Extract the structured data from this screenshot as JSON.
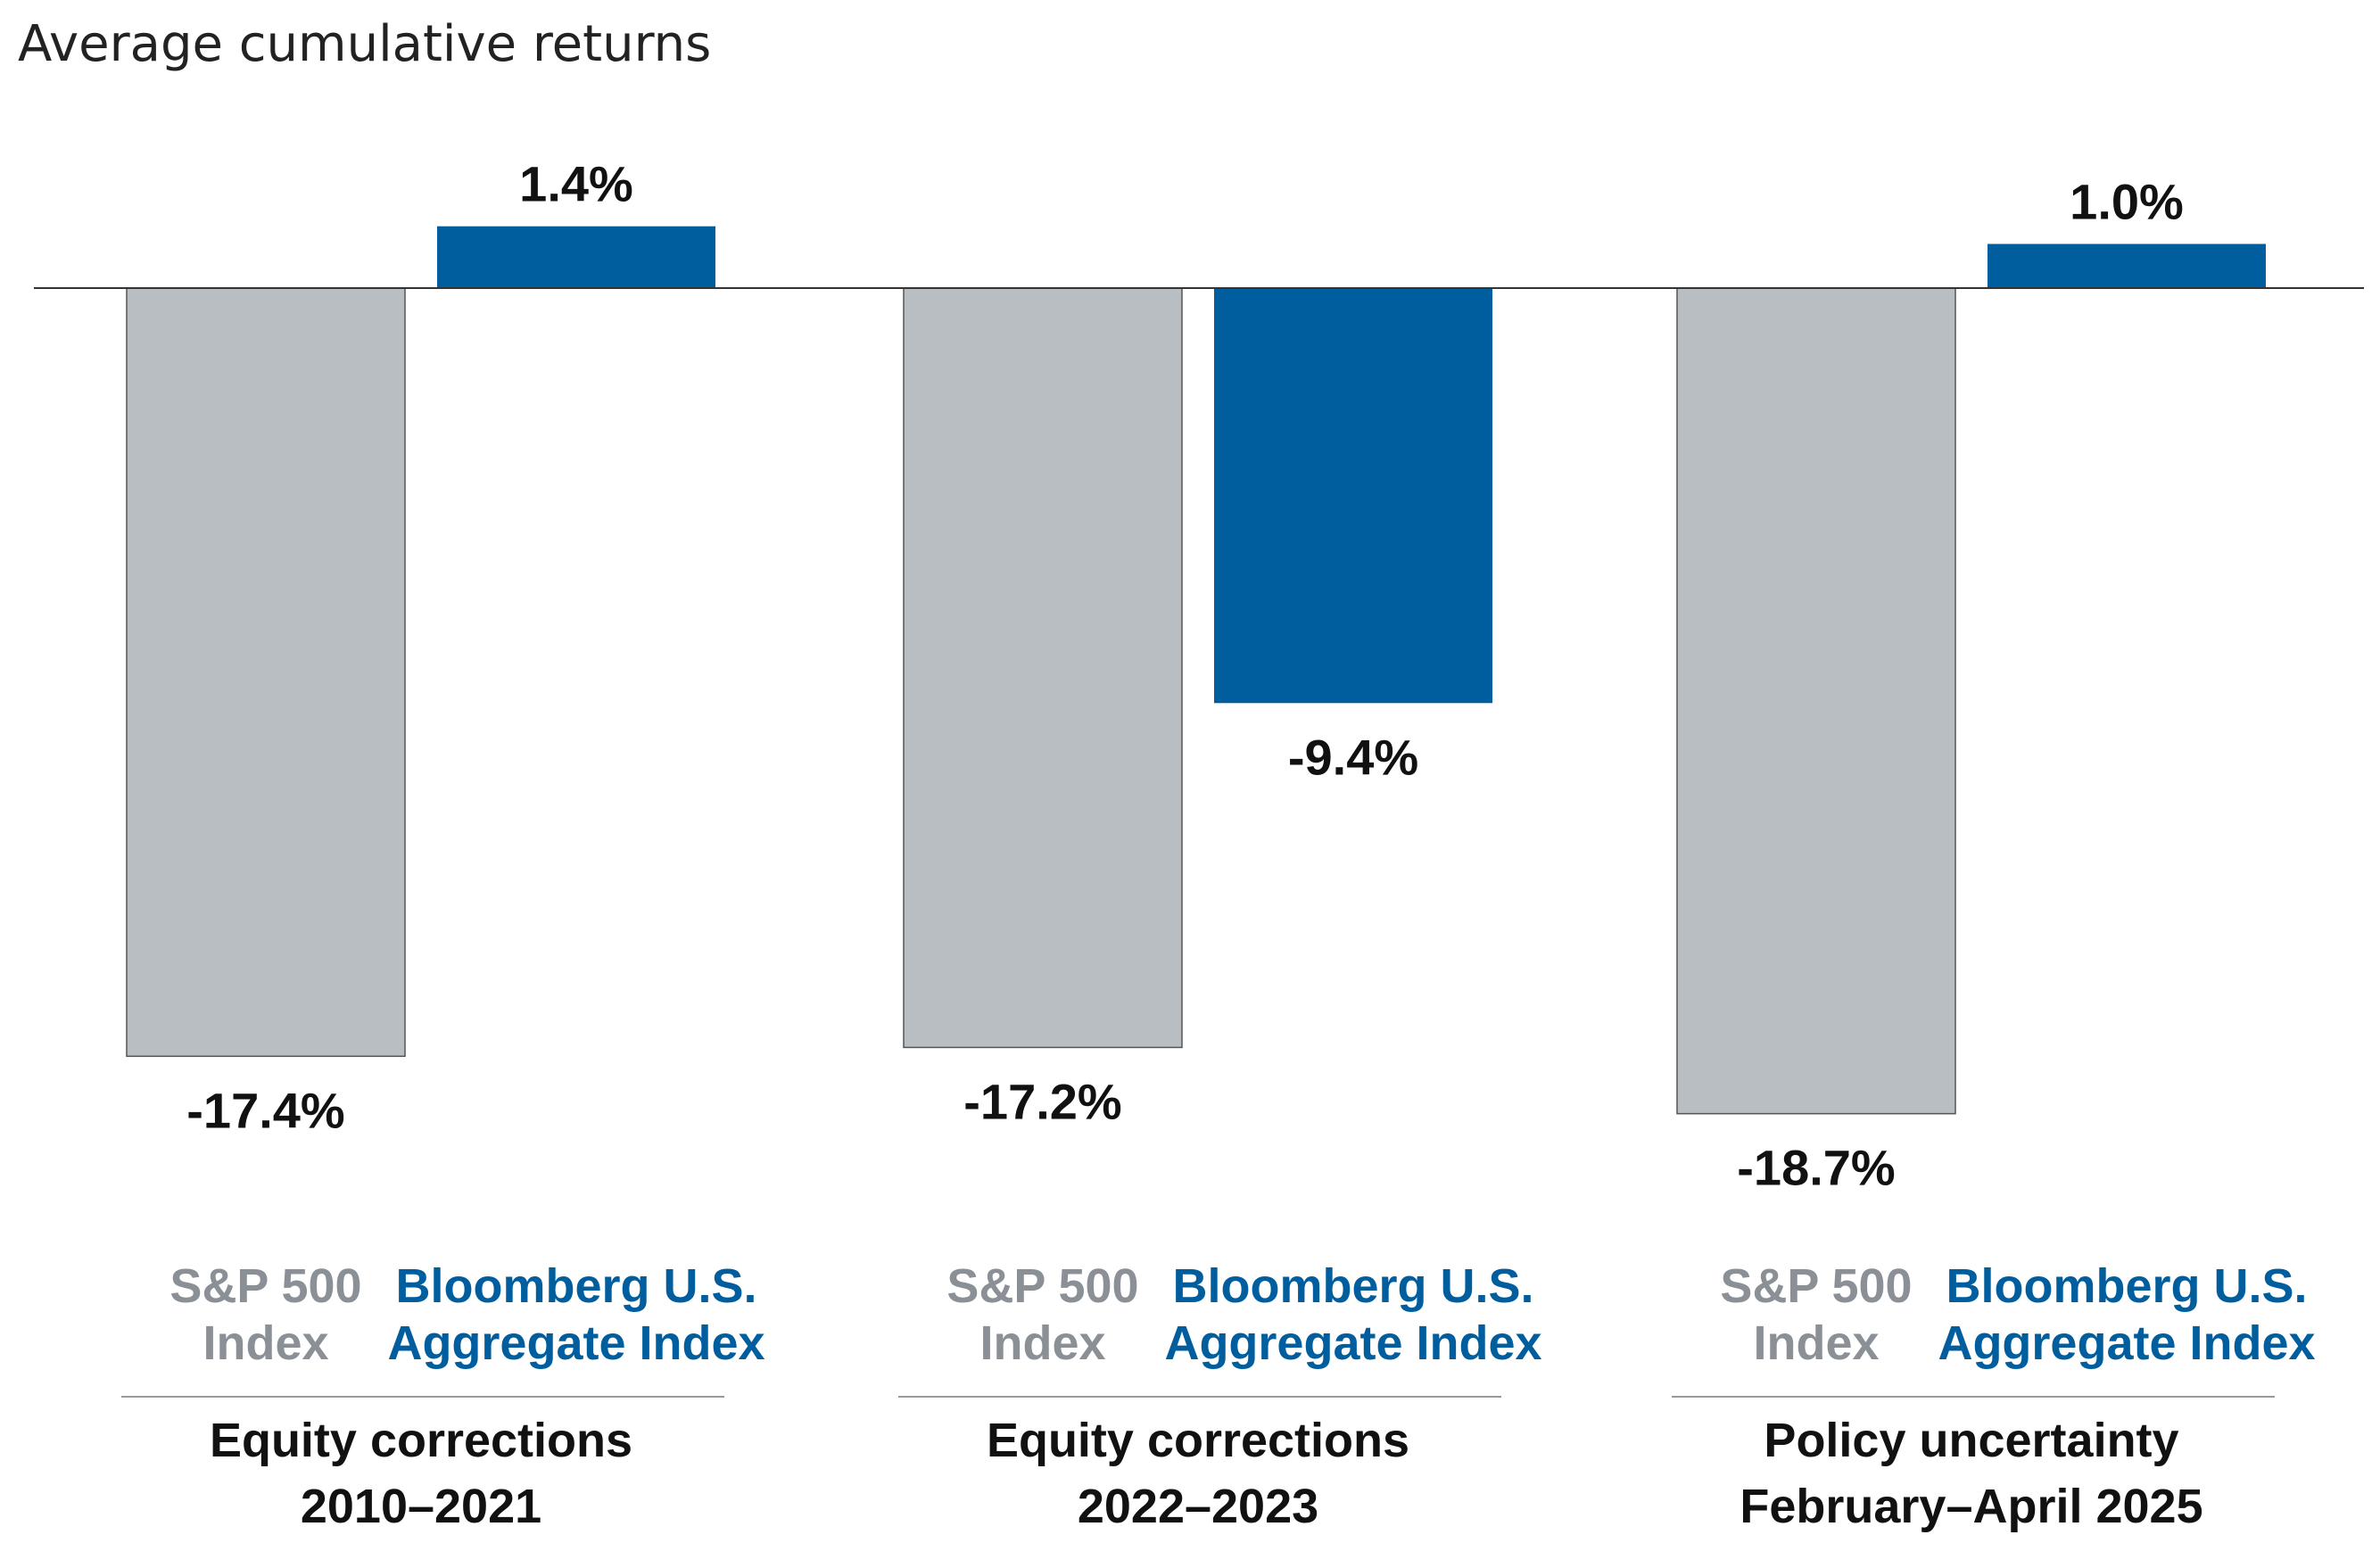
{
  "chart_data": {
    "type": "bar",
    "title": "Average cumulative returns",
    "xlabel": "",
    "ylabel": "",
    "ylim": [
      -20,
      2
    ],
    "grid": false,
    "colors": {
      "sp500_fill": "#b8bec1",
      "sp500_label": "#8a9095",
      "agg_fill": "#005e9e",
      "agg_label": "#005e9e",
      "baseline": "#333333",
      "divider": "#999999"
    },
    "categories": [
      [
        "Equity corrections",
        "2010–2021"
      ],
      [
        "Equity corrections",
        "2022–2023"
      ],
      [
        "Policy uncertainty",
        "February–April 2025"
      ]
    ],
    "series": [
      {
        "key": "sp500",
        "name_lines": [
          "S&P 500",
          "Index"
        ],
        "values": [
          -17.4,
          -17.2,
          -18.7
        ],
        "labels": [
          "-17.4%",
          "-17.2%",
          "-18.7%"
        ]
      },
      {
        "key": "agg",
        "name_lines": [
          "Bloomberg U.S.",
          "Aggregate Index"
        ],
        "values": [
          1.4,
          -9.4,
          1.0
        ],
        "labels": [
          "1.4%",
          "-9.4%",
          "1.0%"
        ]
      }
    ]
  }
}
